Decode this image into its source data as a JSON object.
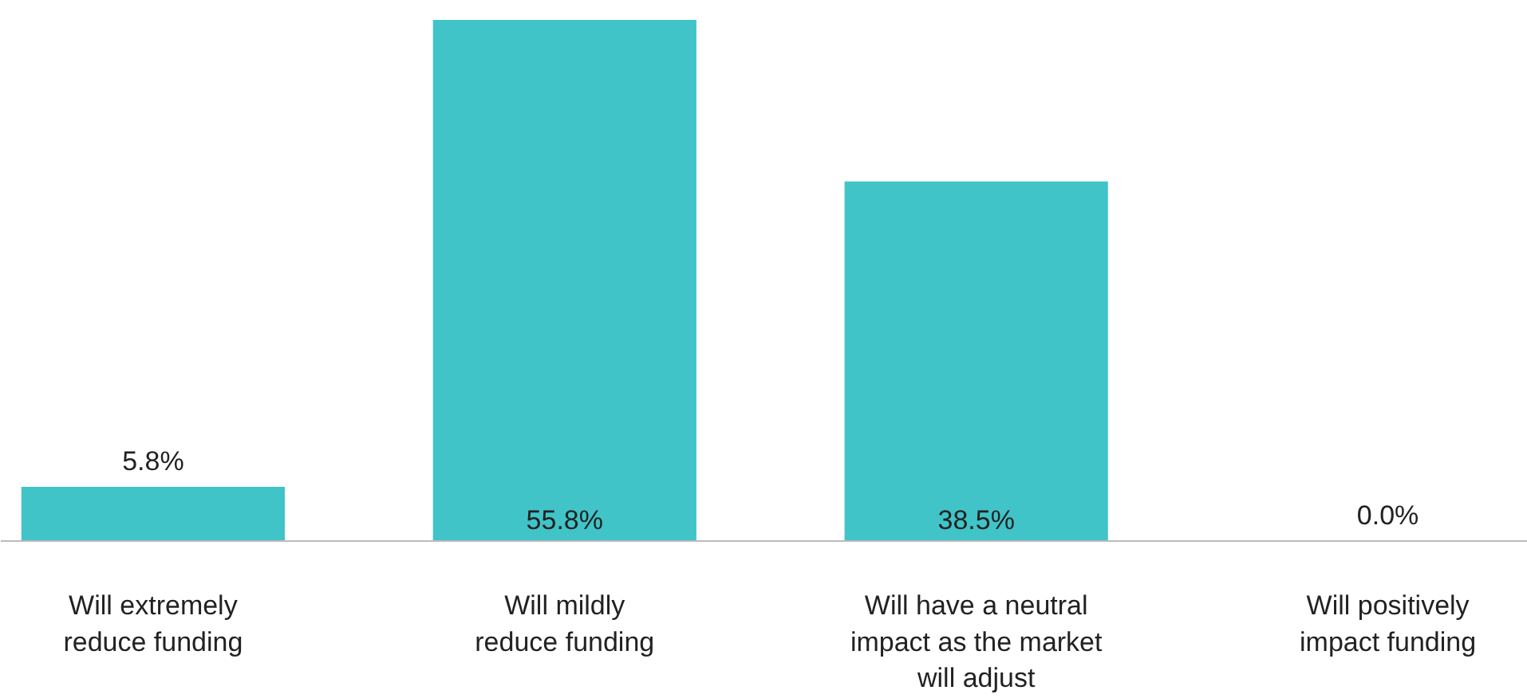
{
  "chart_data": {
    "type": "bar",
    "categories": [
      "Will extremely\nreduce funding",
      "Will mildly\nreduce funding",
      "Will have a neutral\nimpact as the market\nwill adjust",
      "Will positively\nimpact funding"
    ],
    "values": [
      5.8,
      55.8,
      38.5,
      0.0
    ],
    "value_labels": [
      "5.8%",
      "55.8%",
      "38.5%",
      "0.0%"
    ],
    "color": "#40c4c8",
    "grid": false
  }
}
